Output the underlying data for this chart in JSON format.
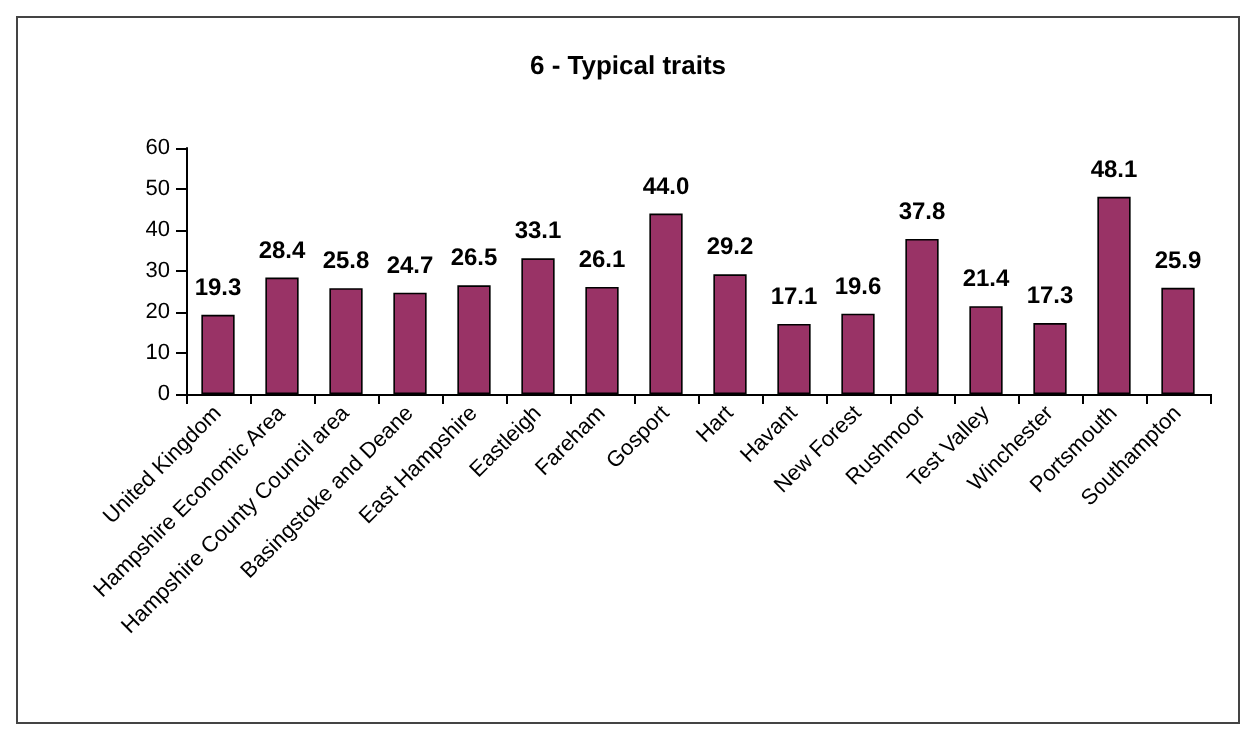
{
  "chart_data": {
    "type": "bar",
    "title": "6 - Typical traits",
    "categories": [
      "United Kingdom",
      "Hampshire Economic Area",
      "Hampshire County Council area",
      "Basingstoke and Deane",
      "East Hampshire",
      "Eastleigh",
      "Fareham",
      "Gosport",
      "Hart",
      "Havant",
      "New Forest",
      "Rushmoor",
      "Test Valley",
      "Winchester",
      "Portsmouth",
      "Southampton"
    ],
    "values": [
      19.3,
      28.4,
      25.8,
      24.7,
      26.5,
      33.1,
      26.1,
      44.0,
      29.2,
      17.1,
      19.6,
      37.8,
      21.4,
      17.3,
      48.1,
      25.9
    ],
    "value_labels": [
      "19.3",
      "28.4",
      "25.8",
      "24.7",
      "26.5",
      "33.1",
      "26.1",
      "44.0",
      "29.2",
      "17.1",
      "19.6",
      "37.8",
      "21.4",
      "17.3",
      "48.1",
      "25.9"
    ],
    "color": "#993366",
    "ylim": [
      0,
      60
    ],
    "yticks": [
      0,
      10,
      20,
      30,
      40,
      50,
      60
    ],
    "grid": false
  }
}
